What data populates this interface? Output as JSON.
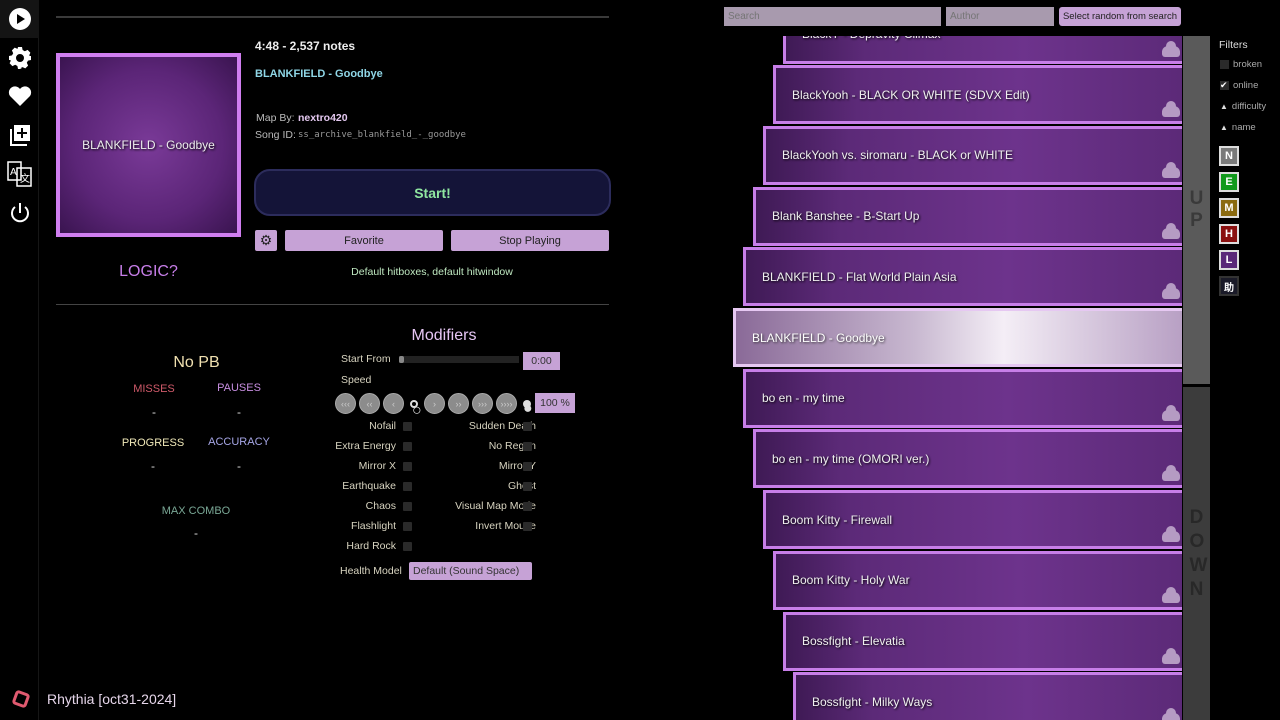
{
  "sidebar": {
    "items": [
      {
        "icon": "play-icon"
      },
      {
        "icon": "gear-icon"
      },
      {
        "icon": "heart-icon"
      },
      {
        "icon": "add-map-icon"
      },
      {
        "icon": "translate-icon"
      },
      {
        "icon": "power-icon"
      }
    ]
  },
  "app": {
    "name": "Rhythia [oct31-2024]"
  },
  "map": {
    "length_notes": "4:48 - 2,537 notes",
    "title": "BLANKFIELD - Goodbye",
    "cover_text": "BLANKFIELD - Goodbye",
    "map_by_label": "Map By:",
    "mapper": "nextro420",
    "song_id_label": "Song ID:",
    "song_id": "ss_archive_blankfield_-_goodbye",
    "difficulty": "LOGIC?",
    "hitbox_info": "Default hitboxes, default hitwindow"
  },
  "actions": {
    "start": "Start!",
    "favorite": "Favorite",
    "stop": "Stop Playing"
  },
  "stats": {
    "title": "No PB",
    "misses_label": "MISSES",
    "misses": "-",
    "pauses_label": "PAUSES",
    "pauses": "-",
    "progress_label": "PROGRESS",
    "progress": "-",
    "accuracy_label": "ACCURACY",
    "accuracy": "-",
    "max_combo_label": "MAX COMBO",
    "max_combo": "-"
  },
  "modifiers": {
    "title": "Modifiers",
    "start_from_label": "Start From",
    "start_from_value": "0:00",
    "start_from_fraction": 0,
    "speed_label": "Speed",
    "speed_value": "100 %",
    "speed_buttons": [
      "‹‹‹",
      "‹‹",
      "‹",
      "○",
      "›",
      "››",
      "›››",
      "››››",
      "●"
    ],
    "toggles": [
      [
        "Nofail",
        "Sudden Death"
      ],
      [
        "Extra Energy",
        "No Regen"
      ],
      [
        "Mirror X",
        "Mirror Y"
      ],
      [
        "Earthquake",
        "Ghost"
      ],
      [
        "Chaos",
        "Visual Map Mode"
      ],
      [
        "Flashlight",
        "Invert Mouse"
      ],
      [
        "Hard Rock",
        ""
      ]
    ],
    "health_label": "Health Model",
    "health_value": "Default (Sound Space)"
  },
  "search": {
    "search_placeholder": "Search",
    "author_placeholder": "Author",
    "random_label": "Select random from search"
  },
  "songs": [
    {
      "title": "BlackY - Depravity Climax",
      "selected": false
    },
    {
      "title": "BlackYooh - BLACK OR WHITE (SDVX Edit)",
      "selected": false
    },
    {
      "title": "BlackYooh vs. siromaru - BLACK or WHITE",
      "selected": false
    },
    {
      "title": "Blank Banshee - B-Start Up",
      "selected": false
    },
    {
      "title": "BLANKFIELD - Flat World Plain Asia",
      "selected": false
    },
    {
      "title": "BLANKFIELD - Goodbye",
      "selected": true
    },
    {
      "title": "bo en - my time",
      "selected": false
    },
    {
      "title": "bo en - my time (OMORI ver.)",
      "selected": false
    },
    {
      "title": "Boom Kitty - Firewall",
      "selected": false
    },
    {
      "title": "Boom Kitty - Holy War",
      "selected": false
    },
    {
      "title": "Bossfight - Elevatia",
      "selected": false
    },
    {
      "title": "Bossfight - Milky Ways",
      "selected": false
    }
  ],
  "scroll": {
    "up": "UP",
    "down": "DOWN"
  },
  "filters": {
    "title": "Filters",
    "broken": "broken",
    "broken_checked": false,
    "online": "online",
    "online_checked": true,
    "difficulty": "difficulty",
    "name": "name",
    "difficulties": [
      {
        "label": "N",
        "color": "#7a7a7a"
      },
      {
        "label": "E",
        "color": "#119a1c"
      },
      {
        "label": "M",
        "color": "#8a6a10"
      },
      {
        "label": "H",
        "color": "#8a1010"
      },
      {
        "label": "L",
        "color": "#5a2878"
      },
      {
        "label": "助",
        "color": "#1a1a28"
      }
    ]
  }
}
